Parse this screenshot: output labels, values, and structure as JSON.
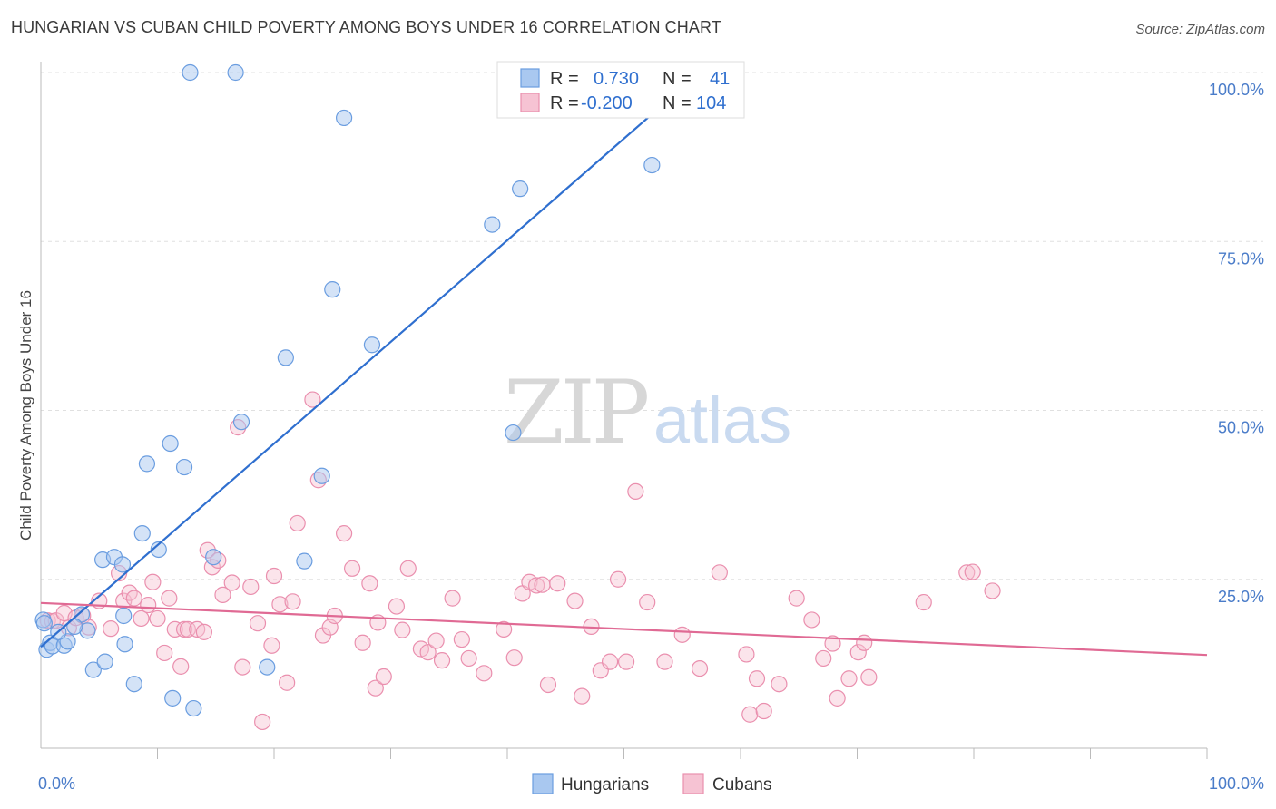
{
  "title": "HUNGARIAN VS CUBAN CHILD POVERTY AMONG BOYS UNDER 16 CORRELATION CHART",
  "source": "Source: ZipAtlas.com",
  "watermark": {
    "zip": "ZIP",
    "atlas": "atlas"
  },
  "colors": {
    "blue_fill": "#a9c8f0",
    "blue_stroke": "#6a9de0",
    "blue_line": "#2f6fcf",
    "pink_fill": "#f6c3d3",
    "pink_stroke": "#ea8fae",
    "pink_line": "#e06a94",
    "grid": "#e0e0e0",
    "tick_text": "#4a7cc9"
  },
  "legend": {
    "rows": [
      {
        "r_label": "R =",
        "r_value": "0.730",
        "n_label": "N =",
        "n_value": "41",
        "series": "Hungarians"
      },
      {
        "r_label": "R =",
        "r_value": "-0.200",
        "n_label": "N =",
        "n_value": "104",
        "series": "Cubans"
      }
    ]
  },
  "bottom_legend": [
    "Hungarians",
    "Cubans"
  ],
  "chart_data": {
    "type": "scatter",
    "title": "HUNGARIAN VS CUBAN CHILD POVERTY AMONG BOYS UNDER 16 CORRELATION CHART",
    "xlabel": "",
    "ylabel": "Child Poverty Among Boys Under 16",
    "xlim": [
      0,
      100
    ],
    "ylim": [
      0,
      100
    ],
    "x_tick_labels": [
      "0.0%",
      "100.0%"
    ],
    "y_tick_values": [
      25,
      50,
      75,
      100
    ],
    "y_tick_labels": [
      "25.0%",
      "50.0%",
      "75.0%",
      "100.0%"
    ],
    "grid": true,
    "legend_position": "top-center",
    "series": [
      {
        "name": "Hungarians",
        "r": 0.73,
        "n": 41,
        "trendline": {
          "x": [
            0,
            56.5
          ],
          "y": [
            15.0,
            100.0
          ]
        },
        "points": [
          [
            0.5,
            14.6
          ],
          [
            0.8,
            15.6
          ],
          [
            1,
            15.1
          ],
          [
            2,
            15.2
          ],
          [
            2.3,
            15.8
          ],
          [
            3.5,
            19.8
          ],
          [
            4,
            17.4
          ],
          [
            4.5,
            11.6
          ],
          [
            5.5,
            12.8
          ],
          [
            5.3,
            27.9
          ],
          [
            6.3,
            28.3
          ],
          [
            7.1,
            19.6
          ],
          [
            7,
            27.2
          ],
          [
            7.2,
            15.4
          ],
          [
            8,
            9.5
          ],
          [
            8.7,
            31.8
          ],
          [
            9.1,
            42.1
          ],
          [
            10.1,
            29.4
          ],
          [
            11.1,
            45.1
          ],
          [
            11.3,
            7.4
          ],
          [
            12.3,
            41.6
          ],
          [
            12.8,
            100.0
          ],
          [
            13.1,
            5.9
          ],
          [
            14.8,
            28.3
          ],
          [
            16.7,
            100.0
          ],
          [
            17.2,
            48.3
          ],
          [
            19.4,
            12.0
          ],
          [
            21,
            57.8
          ],
          [
            22.6,
            27.7
          ],
          [
            24.1,
            40.3
          ],
          [
            25,
            67.9
          ],
          [
            26,
            93.3
          ],
          [
            28.4,
            59.7
          ],
          [
            38.7,
            77.5
          ],
          [
            40.5,
            46.7
          ],
          [
            41.1,
            82.8
          ],
          [
            52.4,
            86.3
          ],
          [
            0.2,
            19.0
          ],
          [
            1.5,
            17.2
          ],
          [
            2.9,
            18.0
          ],
          [
            0.3,
            18.5
          ]
        ]
      },
      {
        "name": "Cubans",
        "r": -0.2,
        "n": 104,
        "trendline": {
          "x": [
            0,
            100
          ],
          "y": [
            21.5,
            13.8
          ]
        },
        "points": [
          [
            0.6,
            18.9
          ],
          [
            1,
            18.8
          ],
          [
            1.3,
            18.9
          ],
          [
            2,
            20.0
          ],
          [
            2.4,
            17.8
          ],
          [
            3,
            19.3
          ],
          [
            3.6,
            19.6
          ],
          [
            4.1,
            17.9
          ],
          [
            5,
            21.8
          ],
          [
            6,
            17.7
          ],
          [
            6.7,
            25.9
          ],
          [
            7.1,
            21.8
          ],
          [
            7.6,
            23.0
          ],
          [
            8,
            22.2
          ],
          [
            8.6,
            19.2
          ],
          [
            9.2,
            21.2
          ],
          [
            9.6,
            24.6
          ],
          [
            10,
            19.2
          ],
          [
            10.6,
            14.1
          ],
          [
            11,
            22.2
          ],
          [
            11.5,
            17.6
          ],
          [
            12,
            12.1
          ],
          [
            12.3,
            17.6
          ],
          [
            12.6,
            17.6
          ],
          [
            13.4,
            17.6
          ],
          [
            14,
            17.2
          ],
          [
            14.3,
            29.3
          ],
          [
            14.7,
            26.8
          ],
          [
            15.2,
            27.8
          ],
          [
            15.6,
            22.7
          ],
          [
            16.4,
            24.5
          ],
          [
            16.9,
            47.5
          ],
          [
            17.3,
            12.0
          ],
          [
            18,
            23.9
          ],
          [
            18.6,
            18.5
          ],
          [
            19,
            3.9
          ],
          [
            19.8,
            15.2
          ],
          [
            20,
            25.5
          ],
          [
            20.5,
            21.3
          ],
          [
            21.1,
            9.7
          ],
          [
            21.6,
            21.7
          ],
          [
            22,
            33.3
          ],
          [
            23.3,
            51.6
          ],
          [
            23.8,
            39.7
          ],
          [
            24.2,
            16.7
          ],
          [
            24.8,
            17.9
          ],
          [
            25.2,
            19.6
          ],
          [
            26,
            31.8
          ],
          [
            26.7,
            26.6
          ],
          [
            27.6,
            15.6
          ],
          [
            28.2,
            24.4
          ],
          [
            28.7,
            8.9
          ],
          [
            28.9,
            18.6
          ],
          [
            29.4,
            10.6
          ],
          [
            30.5,
            21.0
          ],
          [
            31,
            17.5
          ],
          [
            31.5,
            26.6
          ],
          [
            32.6,
            14.7
          ],
          [
            33.2,
            14.2
          ],
          [
            33.9,
            15.9
          ],
          [
            34.4,
            13.0
          ],
          [
            35.3,
            22.2
          ],
          [
            36.1,
            16.1
          ],
          [
            36.7,
            13.3
          ],
          [
            38,
            11.1
          ],
          [
            39.7,
            17.6
          ],
          [
            40.6,
            13.4
          ],
          [
            41.3,
            22.9
          ],
          [
            41.9,
            24.6
          ],
          [
            42.5,
            24.1
          ],
          [
            43,
            24.2
          ],
          [
            43.5,
            9.4
          ],
          [
            44.3,
            24.4
          ],
          [
            45.8,
            21.8
          ],
          [
            46.4,
            7.7
          ],
          [
            47.2,
            18.0
          ],
          [
            48,
            11.5
          ],
          [
            48.8,
            12.8
          ],
          [
            49.5,
            25.0
          ],
          [
            50.2,
            12.8
          ],
          [
            51,
            38.0
          ],
          [
            52,
            21.6
          ],
          [
            53.5,
            12.8
          ],
          [
            55,
            16.8
          ],
          [
            56.5,
            11.8
          ],
          [
            58.2,
            26.0
          ],
          [
            60.5,
            13.9
          ],
          [
            60.8,
            5.0
          ],
          [
            61.4,
            10.3
          ],
          [
            62,
            5.5
          ],
          [
            63.3,
            9.5
          ],
          [
            64.8,
            22.2
          ],
          [
            66.1,
            19.0
          ],
          [
            67.1,
            13.3
          ],
          [
            68.3,
            7.4
          ],
          [
            69.3,
            10.3
          ],
          [
            70.1,
            14.2
          ],
          [
            70.6,
            15.6
          ],
          [
            75.7,
            21.6
          ],
          [
            79.4,
            26.0
          ],
          [
            79.9,
            26.1
          ],
          [
            81.6,
            23.3
          ],
          [
            67.9,
            15.5
          ],
          [
            71.0,
            10.5
          ]
        ]
      }
    ]
  }
}
